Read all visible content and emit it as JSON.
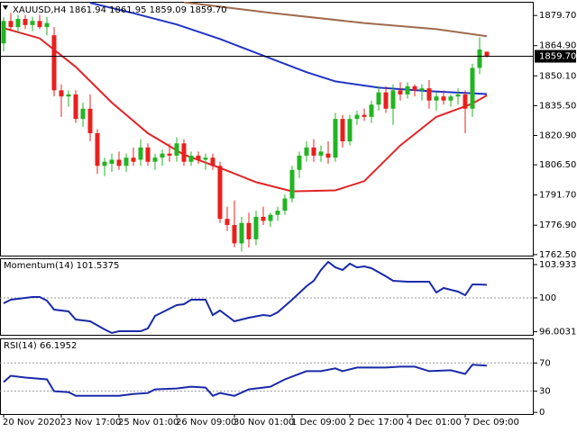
{
  "chart_data": [
    {
      "type": "candlestick",
      "title": "XAUUSD,H4  1861.94 1861.95 1859.09 1859.70",
      "up_color": "#22b422",
      "down_color": "#e8201e",
      "x": [
        0,
        1,
        2,
        3,
        4,
        5,
        6,
        7,
        8,
        9,
        10,
        11,
        12,
        13,
        14,
        15,
        16,
        17,
        18,
        19,
        20,
        21,
        22,
        23,
        24,
        25,
        26,
        27,
        28,
        29,
        30,
        31,
        32,
        33,
        34,
        35,
        36,
        37,
        38,
        39,
        40,
        41,
        42,
        43,
        44,
        45,
        46,
        47,
        48,
        49,
        50,
        51,
        52,
        53,
        54,
        55,
        56,
        57,
        58,
        59,
        60,
        61,
        62,
        63,
        64,
        65,
        66,
        67
      ],
      "open": [
        1866,
        1877,
        1874,
        1878,
        1875,
        1877,
        1874,
        1870,
        1843,
        1840,
        1841,
        1829,
        1834,
        1822,
        1806,
        1807,
        1809,
        1806,
        1810,
        1809,
        1815,
        1808,
        1810,
        1812,
        1811,
        1817,
        1808,
        1811,
        1809,
        1810,
        1806,
        1780,
        1777,
        1768,
        1778,
        1770,
        1781,
        1779,
        1782,
        1784,
        1790,
        1804,
        1811,
        1815,
        1811,
        1812,
        1810,
        1829,
        1818,
        1829,
        1831,
        1830,
        1836,
        1842,
        1834,
        1843,
        1841,
        1845,
        1843,
        1844,
        1838,
        1840,
        1838,
        1840,
        1841,
        1834,
        1854,
        1861.94
      ],
      "high": [
        1879,
        1881,
        1880,
        1880,
        1879,
        1880,
        1879,
        1874,
        1846,
        1843,
        1843,
        1837,
        1841,
        1824,
        1810,
        1812,
        1813,
        1812,
        1815,
        1819,
        1817,
        1812,
        1814,
        1817,
        1820,
        1819,
        1813,
        1813,
        1812,
        1812,
        1808,
        1786,
        1789,
        1781,
        1783,
        1784,
        1786,
        1783,
        1786,
        1792,
        1806,
        1813,
        1818,
        1819,
        1816,
        1818,
        1832,
        1831,
        1831,
        1833,
        1834,
        1838,
        1845,
        1845,
        1846,
        1847,
        1847,
        1846,
        1846,
        1848,
        1842,
        1843,
        1841,
        1844,
        1843,
        1856,
        1869,
        1861.95
      ],
      "low": [
        1862,
        1872,
        1871,
        1873,
        1872,
        1873,
        1870,
        1840,
        1830,
        1835,
        1827,
        1825,
        1818,
        1802,
        1801,
        1803,
        1804,
        1803,
        1806,
        1806,
        1806,
        1804,
        1806,
        1808,
        1808,
        1806,
        1806,
        1807,
        1804,
        1804,
        1778,
        1774,
        1766,
        1764,
        1766,
        1767,
        1777,
        1776,
        1779,
        1782,
        1788,
        1800,
        1808,
        1808,
        1808,
        1807,
        1808,
        1815,
        1816,
        1826,
        1828,
        1827,
        1833,
        1832,
        1826,
        1838,
        1839,
        1840,
        1838,
        1834,
        1833,
        1836,
        1835,
        1836,
        1822,
        1830,
        1851,
        1859.09
      ],
      "close": [
        1877,
        1874,
        1878,
        1875,
        1877,
        1874,
        1876,
        1843,
        1840,
        1841,
        1829,
        1834,
        1822,
        1806,
        1808,
        1809,
        1806,
        1810,
        1808,
        1815,
        1808,
        1810,
        1812,
        1811,
        1817,
        1808,
        1811,
        1809,
        1810,
        1806,
        1780,
        1777,
        1768,
        1778,
        1770,
        1781,
        1779,
        1782,
        1784,
        1790,
        1804,
        1811,
        1815,
        1811,
        1813,
        1810,
        1829,
        1818,
        1829,
        1831,
        1830,
        1836,
        1842,
        1834,
        1843,
        1841,
        1845,
        1843,
        1844,
        1838,
        1840,
        1838,
        1840,
        1841,
        1834,
        1854,
        1863,
        1859.7
      ],
      "lines": [
        {
          "color": "#e02428",
          "x": [
            0,
            5,
            10,
            15,
            20,
            25,
            30,
            35,
            40,
            46,
            50,
            55,
            60,
            65,
            67
          ],
          "values": [
            1873.5,
            1868.5,
            1854.5,
            1837,
            1822,
            1811.5,
            1805,
            1798,
            1793.5,
            1794,
            1798.5,
            1816,
            1830,
            1836.5,
            1840.5
          ]
        },
        {
          "color": "#2233c4",
          "x": [
            12,
            18,
            24,
            30,
            36,
            42,
            46,
            52,
            59,
            67
          ],
          "values": [
            1885.9,
            1880.8,
            1875.3,
            1868.2,
            1860,
            1851.9,
            1847.4,
            1844.3,
            1842.6,
            1841.2
          ]
        },
        {
          "color": "#a06a4c",
          "x": [
            25,
            37,
            50,
            60,
            67
          ],
          "values": [
            1886.2,
            1881,
            1876,
            1873,
            1869.5
          ]
        }
      ],
      "last_price": {
        "value": 1859.7,
        "label": "1859.70"
      },
      "ylim": [
        1762.0,
        1886.4
      ],
      "yticks": [
        {
          "value": 1879.7,
          "label": "1879.70"
        },
        {
          "value": 1864.9,
          "label": "1864.90"
        },
        {
          "value": 1850.1,
          "label": "1850.10"
        },
        {
          "value": 1835.5,
          "label": "1835.50"
        },
        {
          "value": 1820.9,
          "label": "1820.90"
        },
        {
          "value": 1806.5,
          "label": "1806.50"
        },
        {
          "value": 1791.7,
          "label": "1791.70"
        },
        {
          "value": 1776.9,
          "label": "1776.90"
        },
        {
          "value": 1762.5,
          "label": "1762.50"
        }
      ],
      "xlim": [
        -0.5,
        73.5
      ],
      "xticks": [
        {
          "value": 0,
          "label": "20 Nov 2020"
        },
        {
          "value": 8,
          "label": "23 Nov 17:00"
        },
        {
          "value": 16,
          "label": "25 Nov 01:00"
        },
        {
          "value": 24,
          "label": "26 Nov 09:00"
        },
        {
          "value": 32,
          "label": "30 Nov 01:00"
        },
        {
          "value": 40,
          "label": "1 Dec 09:00"
        },
        {
          "value": 48,
          "label": "2 Dec 17:00"
        },
        {
          "value": 56,
          "label": "4 Dec 01:00"
        },
        {
          "value": 64,
          "label": "7 Dec 09:00"
        }
      ]
    },
    {
      "type": "line",
      "title": "Momentum(14) 101.5375",
      "series": [
        {
          "color": "#1a2aa8",
          "x": [
            0,
            1,
            4,
            5,
            6,
            7,
            9,
            10,
            12,
            14,
            15,
            16,
            19,
            20,
            21,
            22,
            24,
            25,
            26,
            28,
            29,
            30,
            32,
            34,
            36,
            37,
            38,
            40,
            42,
            43,
            44,
            45,
            46,
            47,
            48,
            49,
            50,
            51,
            53,
            54,
            56,
            59,
            60,
            61,
            63,
            64,
            65,
            66,
            67
          ],
          "values": [
            99.36,
            99.79,
            100.11,
            100.11,
            99.68,
            98.62,
            98.41,
            97.45,
            97.24,
            96.28,
            95.85,
            96.07,
            96.07,
            96.39,
            97.87,
            98.3,
            99.15,
            99.26,
            99.79,
            99.79,
            97.98,
            98.51,
            97.24,
            97.66,
            97.98,
            97.87,
            98.3,
            99.79,
            101.38,
            102.02,
            103.3,
            104.25,
            103.61,
            103.3,
            104.04,
            103.61,
            103.72,
            103.51,
            102.55,
            102.02,
            101.91,
            101.91,
            100.64,
            101.17,
            100.74,
            100.32,
            101.59,
            101.59,
            101.54
          ]
        }
      ],
      "levels": [
        100
      ],
      "ylim": [
        95.64,
        104.68
      ],
      "yticks": [
        103.9333,
        100,
        96.0031
      ]
    },
    {
      "type": "line",
      "title": "RSI(14) 66.1952",
      "series": [
        {
          "color": "#1a2aa8",
          "x": [
            0,
            1,
            3,
            6,
            7,
            9,
            10,
            12,
            16,
            18,
            20,
            21,
            24,
            26,
            28,
            29,
            30,
            32,
            34,
            37,
            39,
            42,
            44,
            46,
            47,
            49,
            53,
            55,
            57,
            59,
            62,
            64,
            65,
            67
          ],
          "values": [
            42.9,
            51.9,
            49.4,
            46.8,
            30,
            28.7,
            23.5,
            23.5,
            23.5,
            26.1,
            27.4,
            32.6,
            33.9,
            36.5,
            35.2,
            23.5,
            27.4,
            23.5,
            32.6,
            36.5,
            46.8,
            58.4,
            58.4,
            62.3,
            58.4,
            63.5,
            63.5,
            64.8,
            64.8,
            58.4,
            59.7,
            54.5,
            67.4,
            66.2
          ]
        }
      ],
      "levels": [
        70,
        30
      ],
      "ylim": [
        -2.3,
        104.8
      ],
      "yticks": [
        70,
        30,
        0
      ]
    }
  ]
}
